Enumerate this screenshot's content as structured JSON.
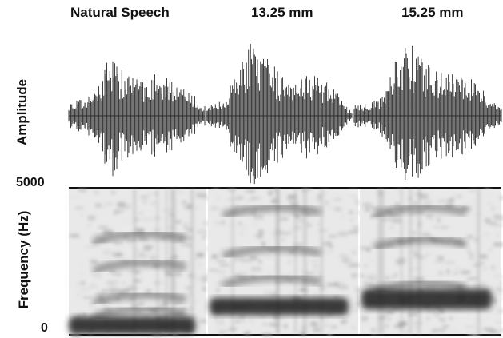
{
  "chart_data": [
    {
      "type": "area",
      "panel": "waveform",
      "ylabel": "Amplitude",
      "series": [
        {
          "name": "Natural Speech",
          "x": [
            0,
            0.1,
            0.2,
            0.3,
            0.4,
            0.5,
            0.6,
            0.7,
            0.8,
            0.9,
            1.0
          ],
          "values": [
            0.18,
            0.22,
            0.35,
            0.92,
            0.62,
            0.52,
            0.56,
            0.62,
            0.45,
            0.3,
            0.15
          ]
        },
        {
          "name": "13.25 mm",
          "x": [
            0,
            0.1,
            0.2,
            0.3,
            0.4,
            0.5,
            0.6,
            0.7,
            0.8,
            0.9,
            1.0
          ],
          "values": [
            0.12,
            0.2,
            0.55,
            1.0,
            0.8,
            0.6,
            0.58,
            0.62,
            0.5,
            0.32,
            0.05
          ]
        },
        {
          "name": "15.25 mm",
          "x": [
            0,
            0.1,
            0.2,
            0.3,
            0.4,
            0.5,
            0.6,
            0.7,
            0.8,
            0.9,
            1.0
          ],
          "values": [
            0.15,
            0.18,
            0.3,
            1.0,
            0.9,
            0.7,
            0.62,
            0.58,
            0.5,
            0.32,
            0.1
          ]
        }
      ]
    },
    {
      "type": "heatmap",
      "panel": "spectrogram",
      "ylabel": "Frequency (Hz)",
      "ylim": [
        0,
        5000
      ],
      "yticks": [
        "5000",
        "0"
      ],
      "series": [
        {
          "name": "Natural Speech",
          "low_band_hz": [
            0,
            600
          ],
          "formants_hz": [
            800,
            1300,
            2400,
            3400
          ]
        },
        {
          "name": "13.25 mm",
          "low_band_hz": [
            650,
            1250
          ],
          "formants_hz": [
            1900,
            2900,
            4300
          ]
        },
        {
          "name": "15.25 mm",
          "low_band_hz": [
            850,
            1550
          ],
          "formants_hz": [
            1700,
            3200,
            4300
          ]
        }
      ]
    }
  ]
}
